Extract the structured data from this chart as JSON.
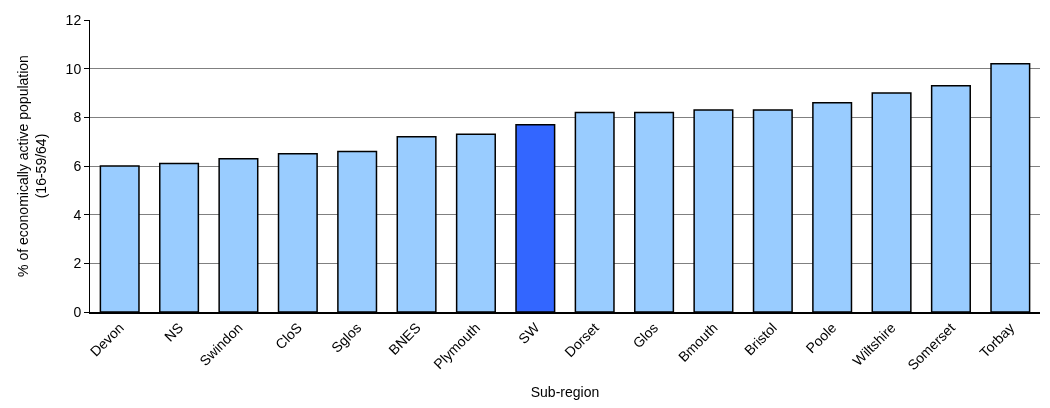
{
  "chart_data": {
    "type": "bar",
    "xlabel": "Sub-region",
    "ylabel": "% of economically active population\n(16-59/64)",
    "categories": [
      "Devon",
      "NS",
      "Swindon",
      "CloS",
      "Sglos",
      "BNES",
      "Plymouth",
      "SW",
      "Dorset",
      "Glos",
      "Bmouth",
      "Bristol",
      "Poole",
      "Wiltshire",
      "Somerset",
      "Torbay"
    ],
    "values": [
      6.0,
      6.1,
      6.3,
      6.5,
      6.6,
      7.2,
      7.3,
      7.7,
      8.2,
      8.2,
      8.3,
      8.3,
      8.6,
      9.0,
      9.3,
      10.2
    ],
    "colors": [
      "#99ccff",
      "#99ccff",
      "#99ccff",
      "#99ccff",
      "#99ccff",
      "#99ccff",
      "#99ccff",
      "#3366ff",
      "#99ccff",
      "#99ccff",
      "#99ccff",
      "#99ccff",
      "#99ccff",
      "#99ccff",
      "#99ccff",
      "#99ccff"
    ],
    "ylim": [
      0,
      12
    ],
    "yticks": [
      0,
      2,
      4,
      6,
      8,
      10,
      12
    ],
    "grid": "y"
  }
}
